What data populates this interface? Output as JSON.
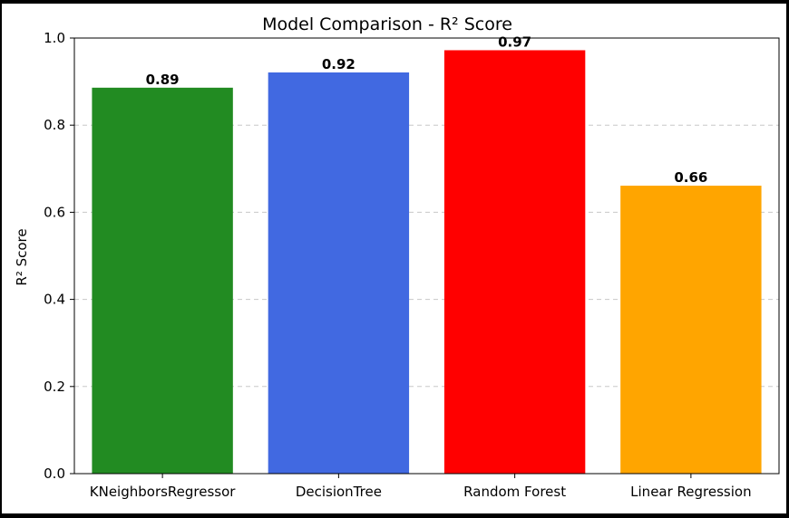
{
  "chart_data": {
    "type": "bar",
    "title": "Model Comparison - R² Score",
    "xlabel": "",
    "ylabel": "R² Score",
    "categories": [
      "KNeighborsRegressor",
      "DecisionTree",
      "Random Forest",
      "Linear Regression"
    ],
    "values": [
      0.886,
      0.921,
      0.972,
      0.661
    ],
    "value_labels": [
      "0.89",
      "0.92",
      "0.97",
      "0.66"
    ],
    "colors": [
      "#228b22",
      "#4169e1",
      "#ff0000",
      "#ffa500"
    ],
    "ylim": [
      0,
      1.0
    ],
    "yticks": [
      0.0,
      0.2,
      0.4,
      0.6,
      0.8,
      1.0
    ],
    "ytick_labels": [
      "0.0",
      "0.2",
      "0.4",
      "0.6",
      "0.8",
      "1.0"
    ],
    "grid": {
      "axis": "y",
      "style": "dashed",
      "color": "#c8c8c8"
    },
    "legend": "none"
  }
}
